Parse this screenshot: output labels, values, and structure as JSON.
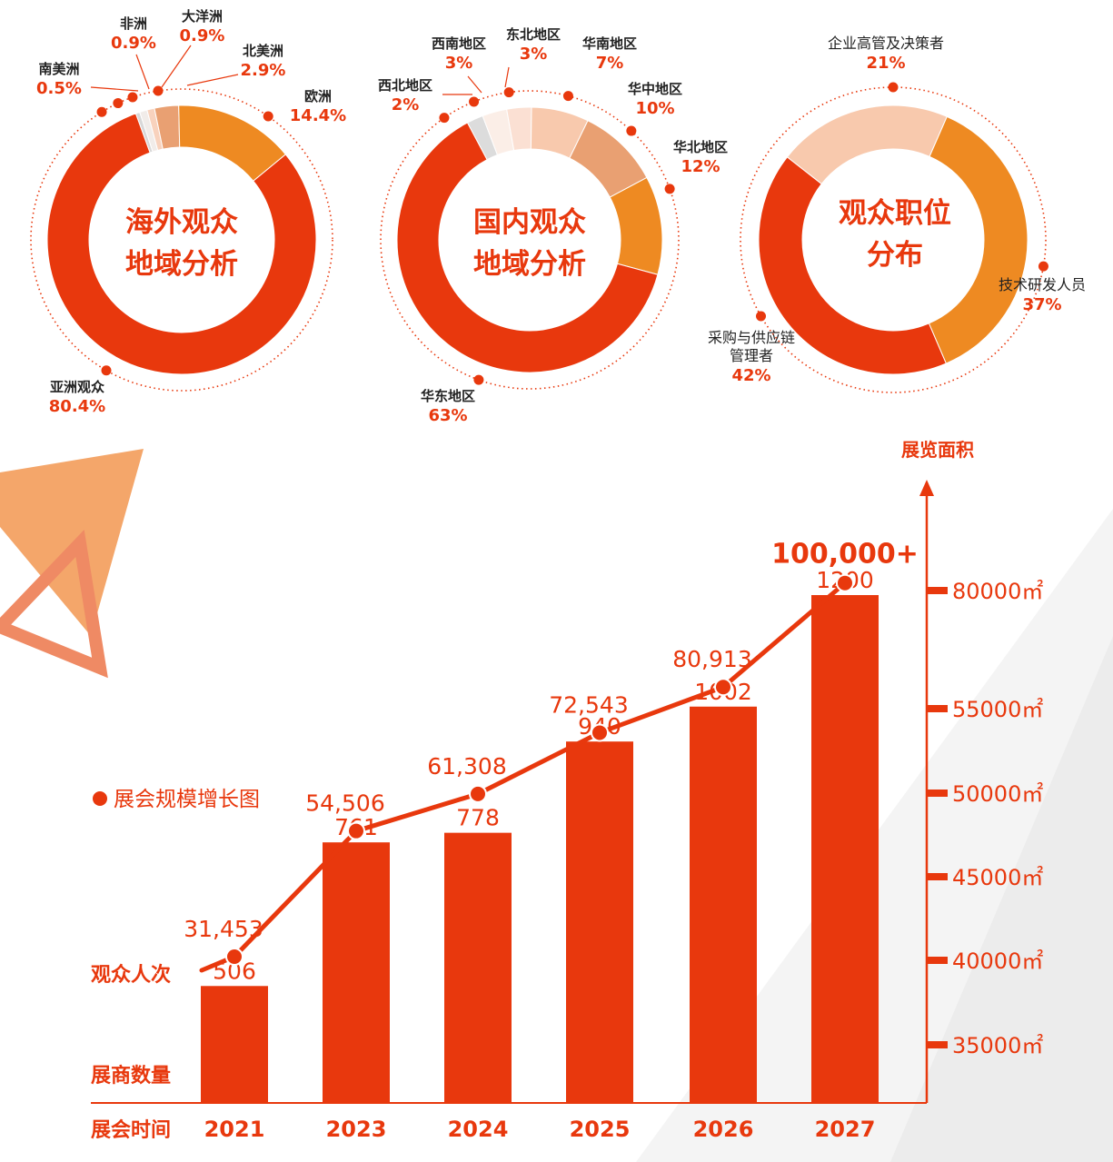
{
  "colors": {
    "accent": "#e8380d",
    "orange": "#ee8a22",
    "light_orange": "#e9a072",
    "peach": "#f8c9ad",
    "pale": "#fbe0d3",
    "gray": "#dcdcdc",
    "text_dark": "#222222"
  },
  "chart_data": [
    {
      "type": "pie",
      "title": "海外观众\n地域分析",
      "title_lines": [
        "海外观众",
        "地域分析"
      ],
      "slices": [
        {
          "name": "亚洲观众",
          "value": 80.4,
          "label": "80.4%",
          "color": "#e8380d"
        },
        {
          "name": "南美洲",
          "value": 0.5,
          "label": "0.5%",
          "color": "#d8d8d8"
        },
        {
          "name": "非洲",
          "value": 0.9,
          "label": "0.9%",
          "color": "#f1ece9"
        },
        {
          "name": "大洋洲",
          "value": 0.9,
          "label": "0.9%",
          "color": "#f8d2bd"
        },
        {
          "name": "北美洲",
          "value": 2.9,
          "label": "2.9%",
          "color": "#e9a072"
        },
        {
          "name": "欧洲",
          "value": 14.4,
          "label": "14.4%",
          "color": "#ee8a22"
        }
      ]
    },
    {
      "type": "pie",
      "title": "国内观众\n地域分析",
      "title_lines": [
        "国内观众",
        "地域分析"
      ],
      "slices": [
        {
          "name": "华东地区",
          "value": 63,
          "label": "63%",
          "color": "#e8380d"
        },
        {
          "name": "西北地区",
          "value": 2,
          "label": "2%",
          "color": "#dcdcdc"
        },
        {
          "name": "西南地区",
          "value": 3,
          "label": "3%",
          "color": "#fbeee7"
        },
        {
          "name": "东北地区",
          "value": 3,
          "label": "3%",
          "color": "#fbe0d3"
        },
        {
          "name": "华南地区",
          "value": 7,
          "label": "7%",
          "color": "#f8c9ad"
        },
        {
          "name": "华中地区",
          "value": 10,
          "label": "10%",
          "color": "#e9a072"
        },
        {
          "name": "华北地区",
          "value": 12,
          "label": "12%",
          "color": "#ee8a22"
        }
      ]
    },
    {
      "type": "pie",
      "title": "观众职位\n分布",
      "title_lines": [
        "观众职位",
        "分布"
      ],
      "slices": [
        {
          "name": "采购与供应链管理者",
          "value": 42,
          "label": "42%",
          "color": "#e8380d"
        },
        {
          "name": "企业高管及决策者",
          "value": 21,
          "label": "21%",
          "color": "#f8c9ad"
        },
        {
          "name": "技术研发人员",
          "value": 37,
          "label": "37%",
          "color": "#ee8a22"
        }
      ]
    },
    {
      "type": "bar",
      "title": "展会规模增长图",
      "categories": [
        "2021",
        "2023",
        "2024",
        "2025",
        "2026",
        "2027"
      ],
      "series": [
        {
          "name": "展商数量",
          "values": [
            506,
            761,
            778,
            940,
            1002,
            1200
          ],
          "labels": [
            "506",
            "761",
            "778",
            "940",
            "1002",
            "1200"
          ]
        },
        {
          "name": "观众人次",
          "values": [
            31453,
            54506,
            61308,
            72543,
            80913,
            100000
          ],
          "labels": [
            "31,453",
            "54,506",
            "61,308",
            "72,543",
            "80,913",
            "100,000+"
          ]
        }
      ],
      "xlabel": "展会时间",
      "ylabel": "展览面积",
      "yticks": [
        "80000㎡",
        "55000㎡",
        "50000㎡",
        "45000㎡",
        "40000㎡",
        "35000㎡"
      ],
      "legend": "top-left"
    }
  ],
  "labels": {
    "overseas": [
      {
        "name": "南美洲",
        "value": "0.5%"
      },
      {
        "name": "非洲",
        "value": "0.9%"
      },
      {
        "name": "大洋洲",
        "value": "0.9%"
      },
      {
        "name": "北美洲",
        "value": "2.9%"
      },
      {
        "name": "欧洲",
        "value": "14.4%"
      },
      {
        "name": "亚洲观众",
        "value": "80.4%"
      }
    ],
    "domestic": [
      {
        "name": "西北地区",
        "value": "2%"
      },
      {
        "name": "西南地区",
        "value": "3%"
      },
      {
        "name": "东北地区",
        "value": "3%"
      },
      {
        "name": "华南地区",
        "value": "7%"
      },
      {
        "name": "华中地区",
        "value": "10%"
      },
      {
        "name": "华北地区",
        "value": "12%"
      },
      {
        "name": "华东地区",
        "value": "63%"
      }
    ],
    "position": [
      {
        "name": "企业高管及决策者",
        "value": "21%"
      },
      {
        "name": "技术研发人员",
        "value": "37%"
      },
      {
        "name": "采购与供应链",
        "name2": "管理者",
        "value": "42%"
      }
    ]
  },
  "bar": {
    "legend_label": "展会规模增长图",
    "row_exhibitors": "展商数量",
    "row_visitors": "观众人次",
    "row_time": "展会时间",
    "area_title": "展览面积"
  }
}
